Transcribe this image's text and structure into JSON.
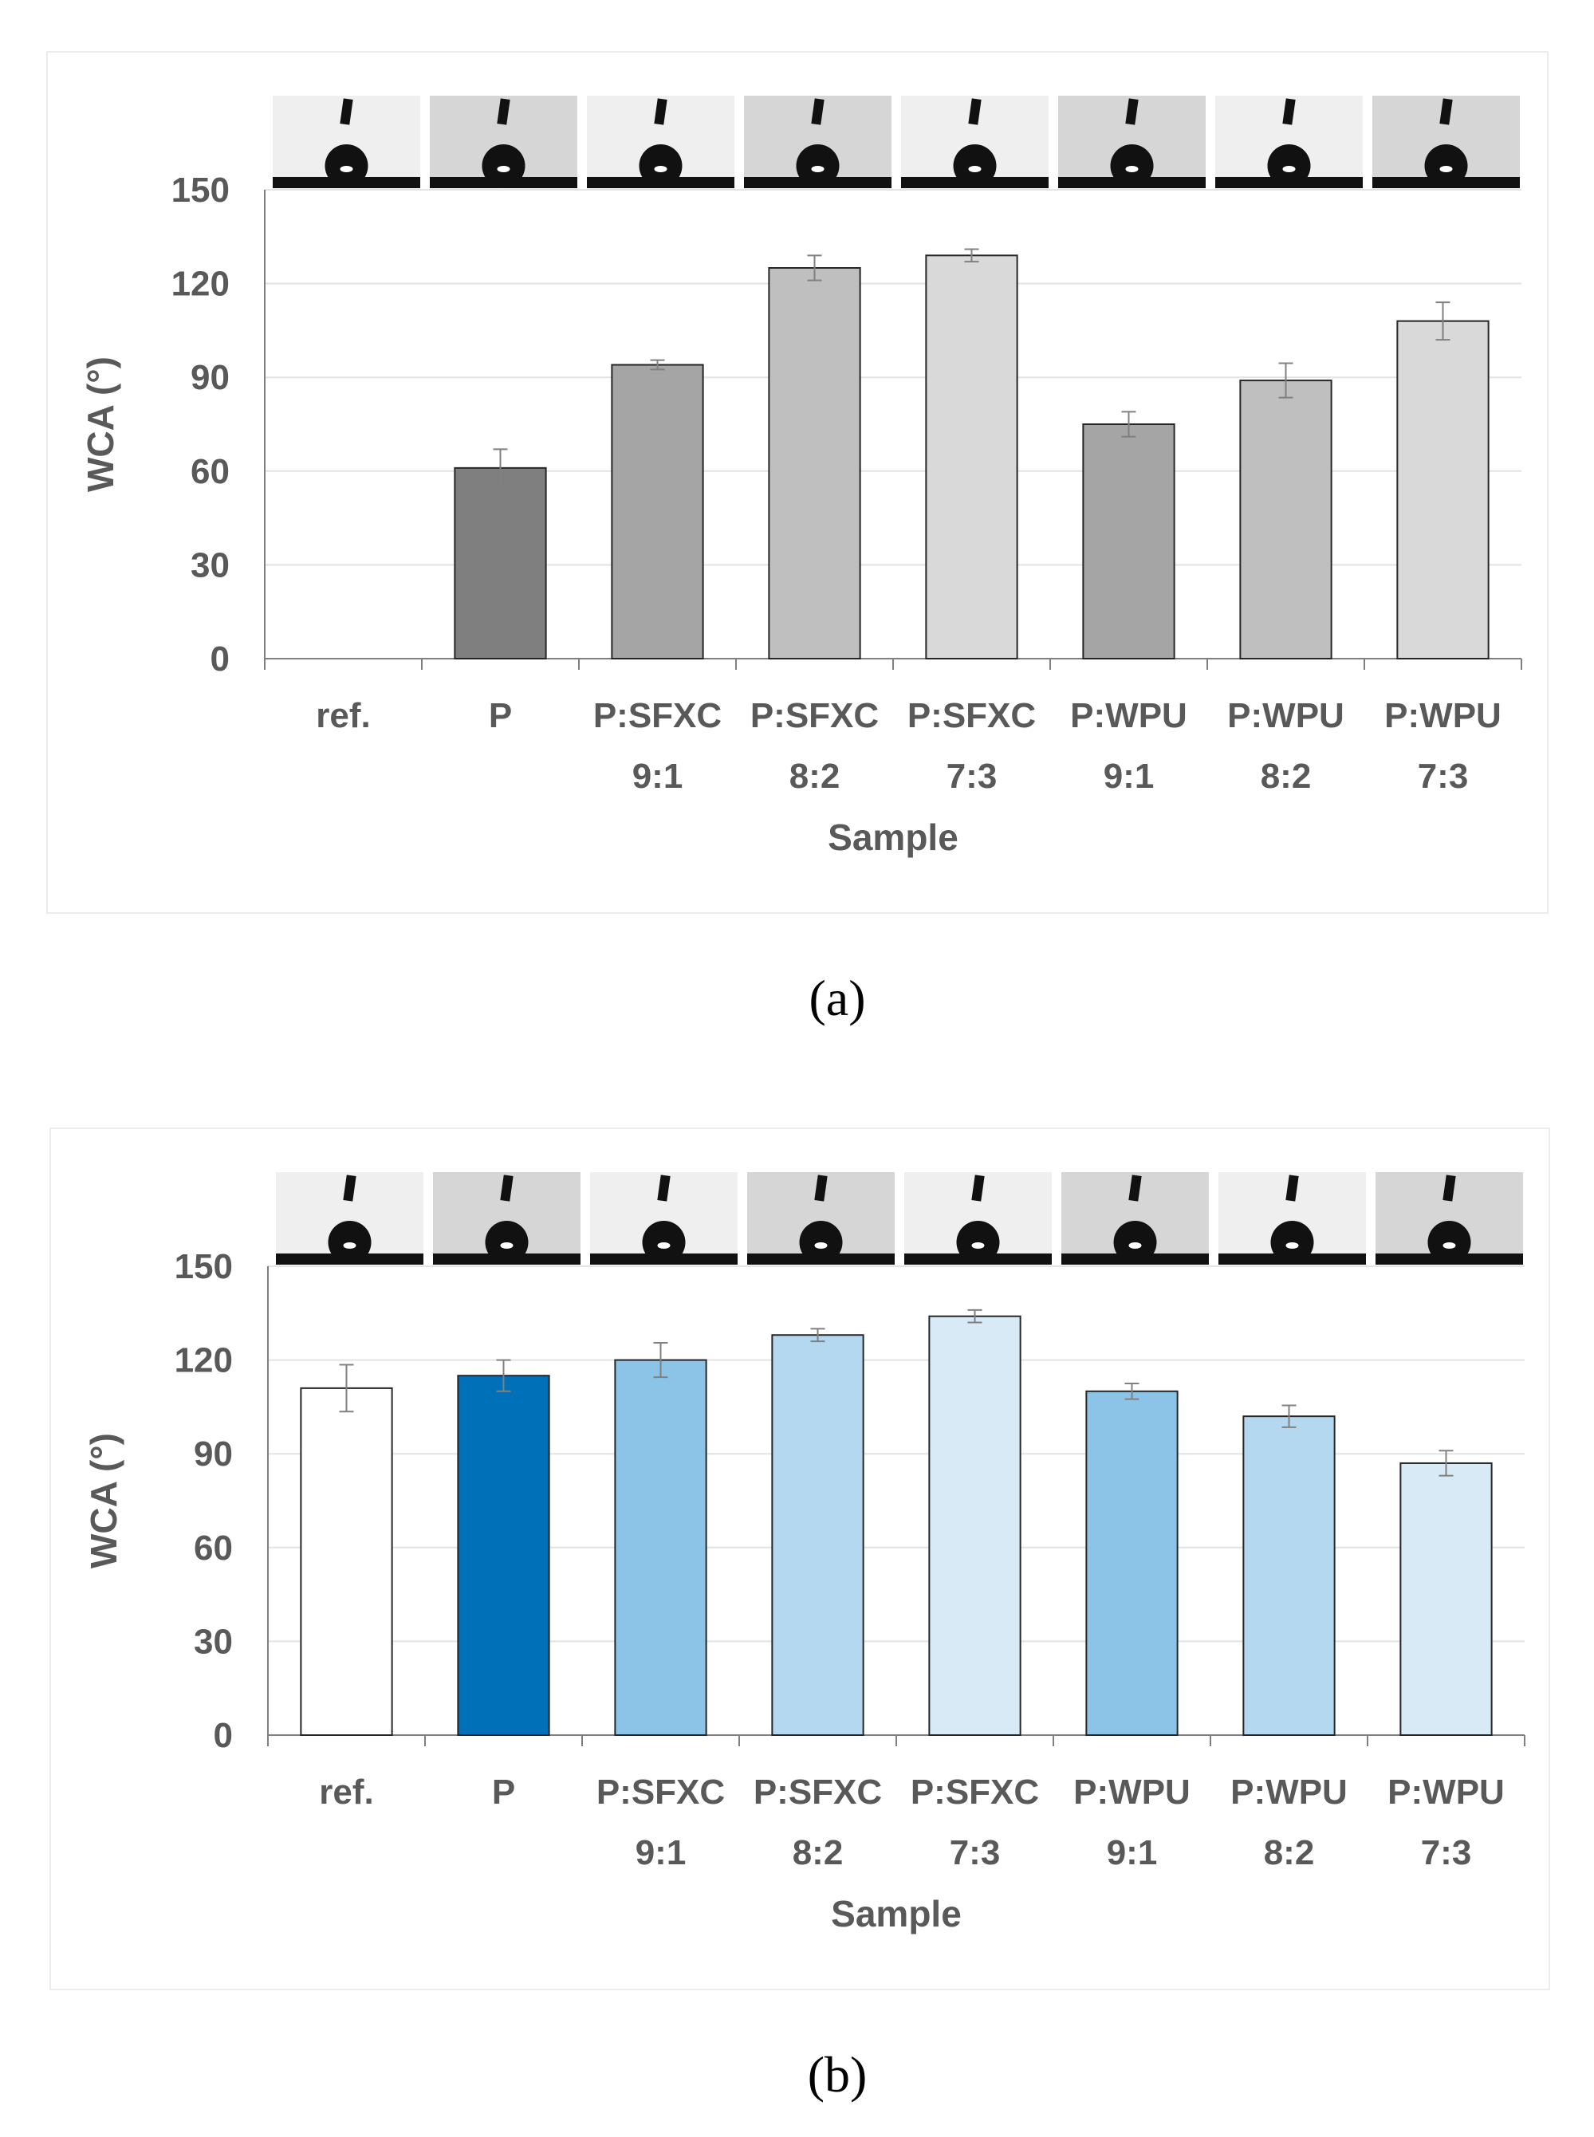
{
  "captions": {
    "a": "(a)",
    "b": "(b)"
  },
  "chart_data": [
    {
      "type": "bar",
      "panel": "(a)",
      "xlabel": "Sample",
      "ylabel": "WCA (°)",
      "ylim": [
        0,
        150
      ],
      "yticks": [
        0,
        30,
        60,
        90,
        120,
        150
      ],
      "grid": true,
      "categories": [
        [
          "ref."
        ],
        [
          "P"
        ],
        [
          "P:SFXC",
          "9:1"
        ],
        [
          "P:SFXC",
          "8:2"
        ],
        [
          "P:SFXC",
          "7:3"
        ],
        [
          "P:WPU",
          "9:1"
        ],
        [
          "P:WPU",
          "8:2"
        ],
        [
          "P:WPU",
          "7:3"
        ]
      ],
      "values": [
        0,
        61,
        94,
        125,
        129,
        75,
        89,
        108
      ],
      "errors": [
        0,
        6,
        1.5,
        4,
        2,
        4,
        5.5,
        6
      ],
      "colors": [
        "#ffffff",
        "#7f7f7f",
        "#a5a5a5",
        "#bfbfbf",
        "#d9d9d9",
        "#a5a5a5",
        "#bfbfbf",
        "#d9d9d9"
      ]
    },
    {
      "type": "bar",
      "panel": "(b)",
      "xlabel": "Sample",
      "ylabel": "WCA (°)",
      "ylim": [
        0,
        150
      ],
      "yticks": [
        0,
        30,
        60,
        90,
        120,
        150
      ],
      "grid": true,
      "categories": [
        [
          "ref."
        ],
        [
          "P"
        ],
        [
          "P:SFXC",
          "9:1"
        ],
        [
          "P:SFXC",
          "8:2"
        ],
        [
          "P:SFXC",
          "7:3"
        ],
        [
          "P:WPU",
          "9:1"
        ],
        [
          "P:WPU",
          "8:2"
        ],
        [
          "P:WPU",
          "7:3"
        ]
      ],
      "values": [
        111,
        115,
        120,
        128,
        134,
        110,
        102,
        87
      ],
      "errors": [
        7.5,
        5,
        5.5,
        2,
        2,
        2.5,
        3.5,
        4
      ],
      "colors": [
        "#ffffff",
        "#0070b8",
        "#8cc4e8",
        "#b4d8f0",
        "#d9eaf7",
        "#8cc4e8",
        "#b4d8f0",
        "#d9eaf7"
      ]
    }
  ]
}
